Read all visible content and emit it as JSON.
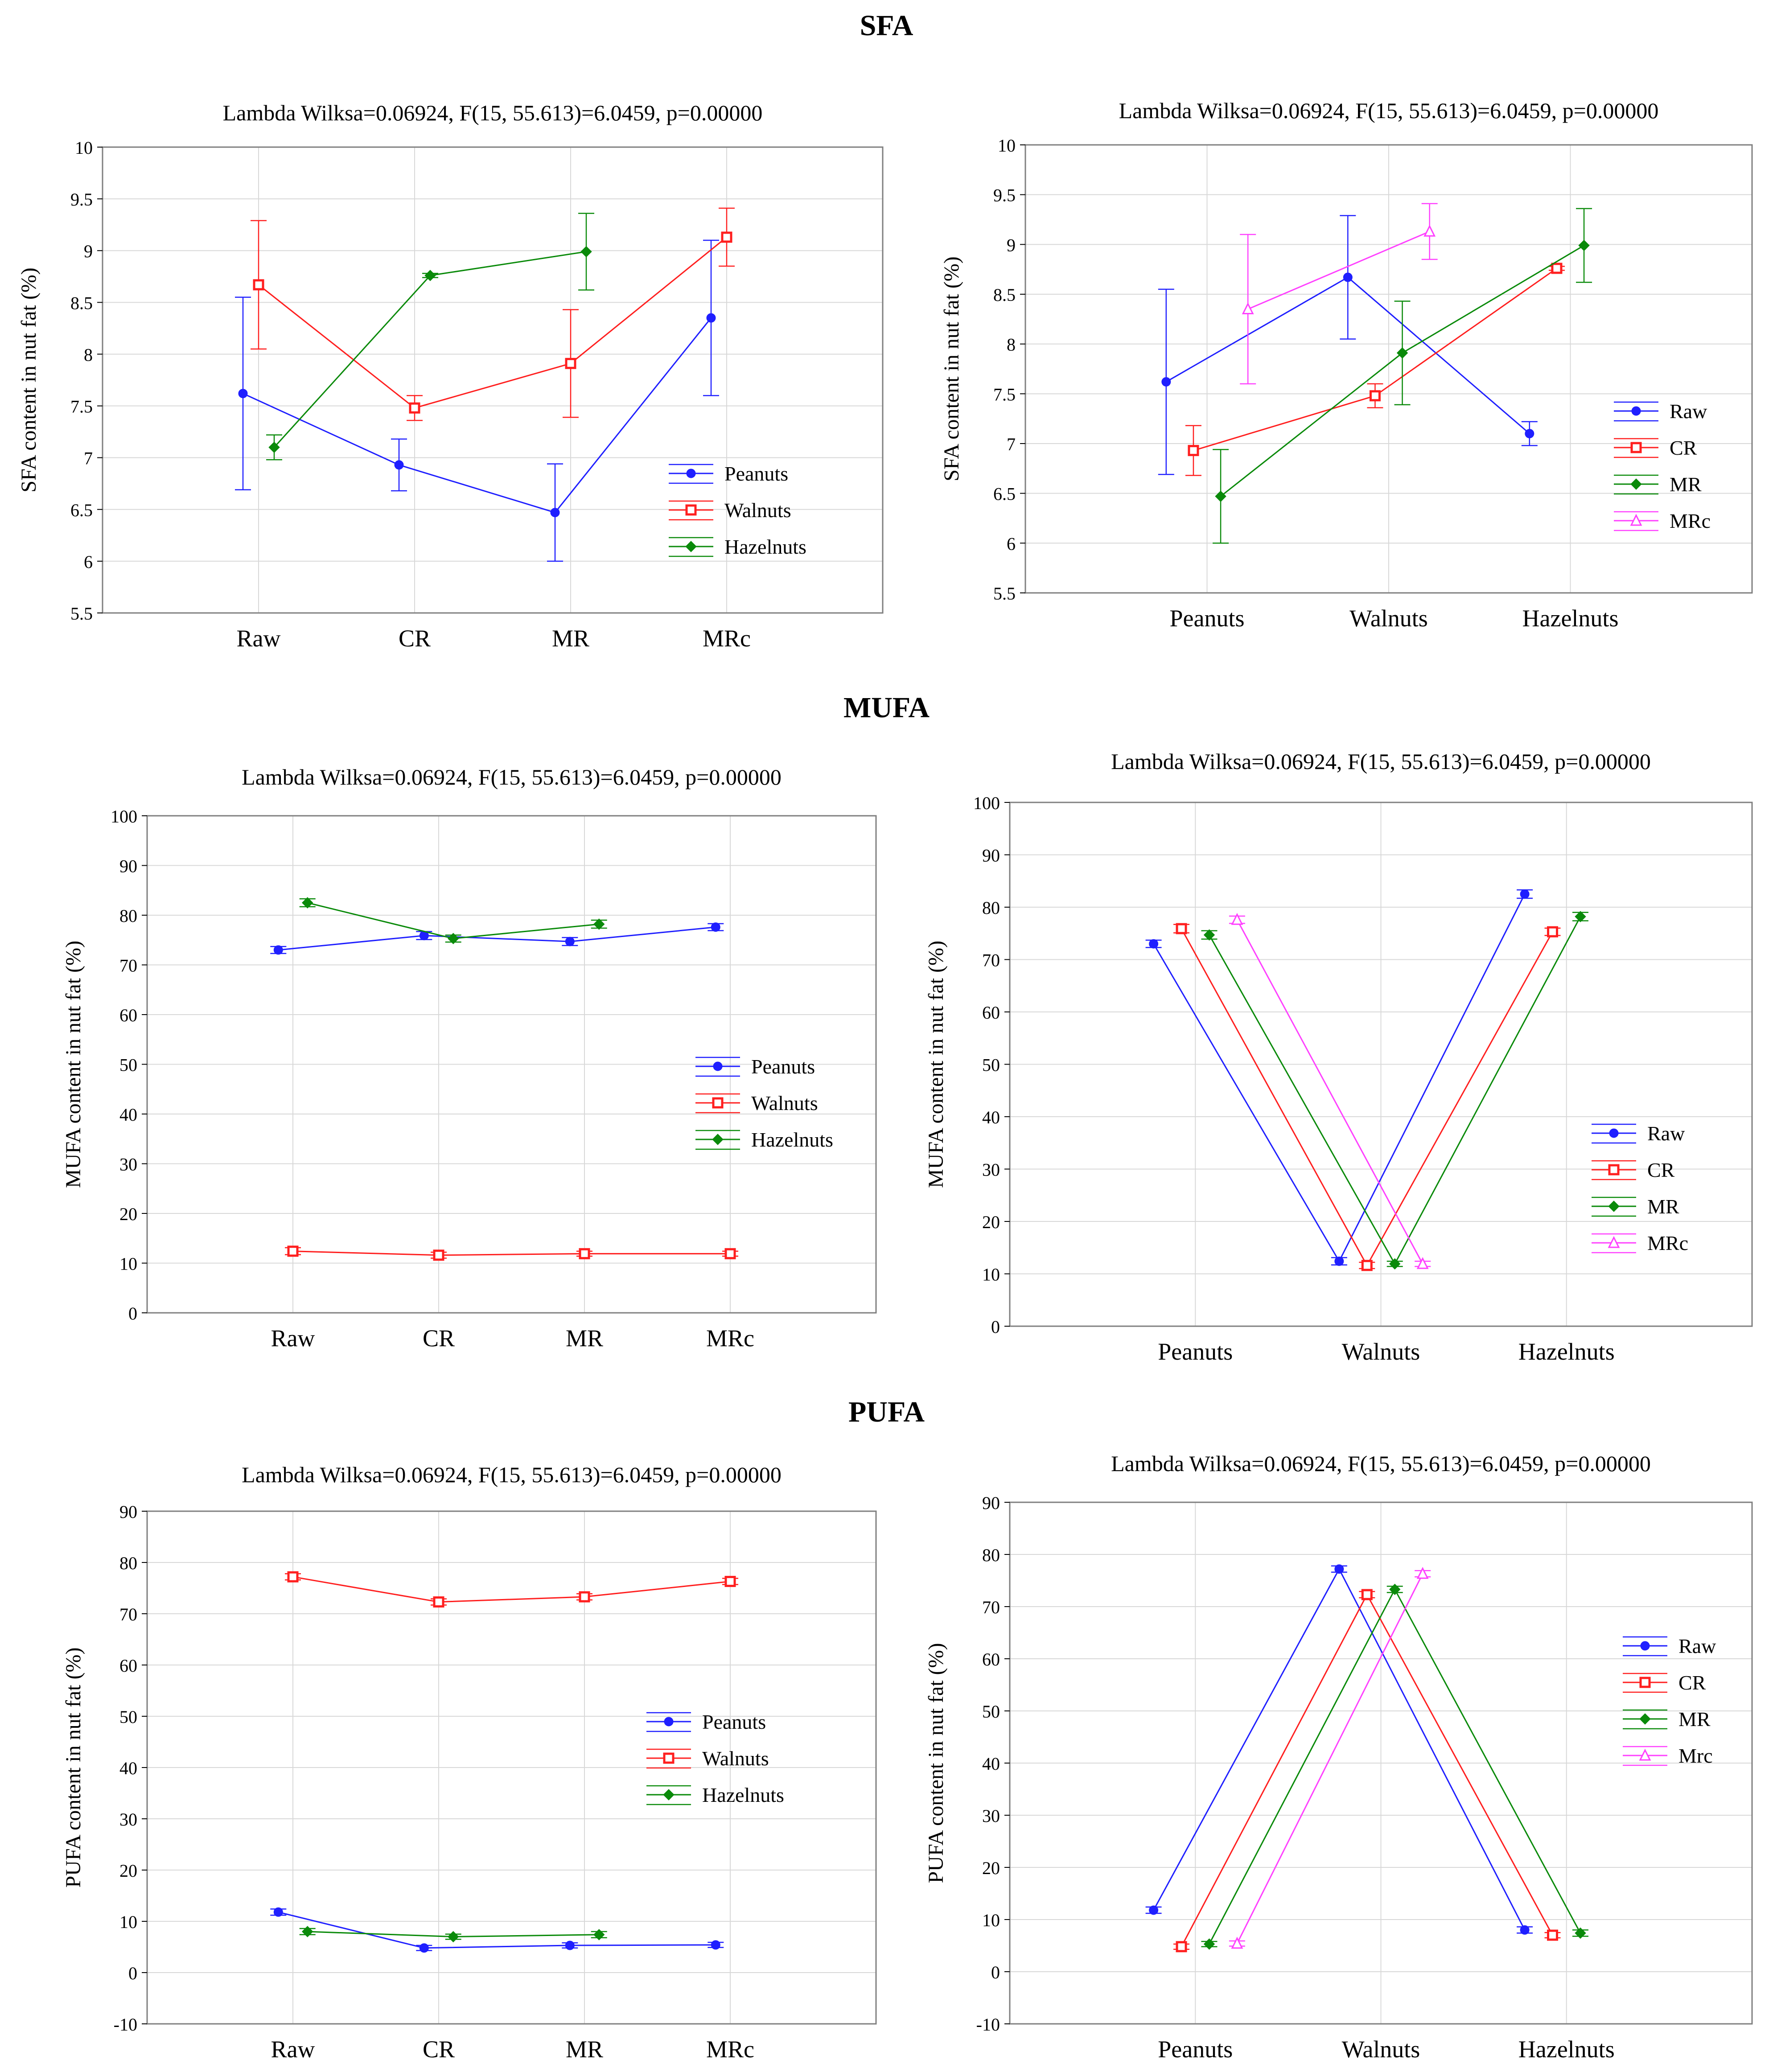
{
  "sections": {
    "sfa": "SFA",
    "mufa": "MUFA",
    "pufa": "PUFA"
  },
  "colors": {
    "blue": "#1f1fff",
    "red": "#ff1f1f",
    "green": "#0a8a0a",
    "magenta": "#ff40ff",
    "grid": "#d8d8d8",
    "frame": "#7f7f7f"
  },
  "chart_data": [
    {
      "id": "sfa-left",
      "type": "line",
      "title": "Lambda Wilksa=0.06924, F(15, 55.613)=6.0459, p=0.00000",
      "ylabel": "SFA content in nut fat (%)",
      "xlabel": "",
      "categories": [
        "Raw",
        "CR",
        "MR",
        "MRc"
      ],
      "ylim": [
        5.5,
        10.0
      ],
      "yticks": [
        5.5,
        6.0,
        6.5,
        7.0,
        7.5,
        8.0,
        8.5,
        9.0,
        9.5,
        10.0
      ],
      "offsets": [
        -0.1,
        0.0,
        0.1
      ],
      "series": [
        {
          "name": "Peanuts",
          "color": "blue",
          "marker": "circle",
          "values": [
            7.62,
            6.93,
            6.47,
            8.35
          ],
          "errors": [
            0.93,
            0.25,
            0.47,
            0.75
          ]
        },
        {
          "name": "Walnuts",
          "color": "red",
          "marker": "square",
          "values": [
            8.67,
            7.48,
            7.91,
            9.13
          ],
          "errors": [
            0.62,
            0.12,
            0.52,
            0.28
          ]
        },
        {
          "name": "Hazelnuts",
          "color": "green",
          "marker": "diamond",
          "values": [
            7.1,
            8.76,
            8.99,
            null
          ],
          "errors": [
            0.12,
            0.02,
            0.37,
            null
          ]
        }
      ],
      "legend": "bottom-right"
    },
    {
      "id": "sfa-right",
      "type": "line",
      "title": "Lambda Wilksa=0.06924, F(15, 55.613)=6.0459, p=0.00000",
      "ylabel": "SFA content in nut fat (%)",
      "xlabel": "",
      "categories": [
        "Peanuts",
        "Walnuts",
        "Hazelnuts"
      ],
      "ylim": [
        5.5,
        10.0
      ],
      "yticks": [
        5.5,
        6.0,
        6.5,
        7.0,
        7.5,
        8.0,
        8.5,
        9.0,
        9.5,
        10.0
      ],
      "offsets": [
        -0.225,
        -0.075,
        0.075,
        0.225
      ],
      "series": [
        {
          "name": "Raw",
          "color": "blue",
          "marker": "circle",
          "values": [
            7.62,
            8.67,
            7.1
          ],
          "errors": [
            0.93,
            0.62,
            0.12
          ]
        },
        {
          "name": "CR",
          "color": "red",
          "marker": "square",
          "values": [
            6.93,
            7.48,
            8.76
          ],
          "errors": [
            0.25,
            0.12,
            0.02
          ]
        },
        {
          "name": "MR",
          "color": "green",
          "marker": "diamond",
          "values": [
            6.47,
            7.91,
            8.99
          ],
          "errors": [
            0.47,
            0.52,
            0.37
          ]
        },
        {
          "name": "MRc",
          "color": "magenta",
          "marker": "triangle",
          "values": [
            8.35,
            9.13,
            null
          ],
          "errors": [
            0.75,
            0.28,
            null
          ]
        }
      ],
      "legend": "bottom-right"
    },
    {
      "id": "mufa-left",
      "type": "line",
      "title": "Lambda Wilksa=0.06924, F(15, 55.613)=6.0459, p=0.00000",
      "ylabel": "MUFA content in nut fat (%)",
      "xlabel": "",
      "categories": [
        "Raw",
        "CR",
        "MR",
        "MRc"
      ],
      "ylim": [
        0,
        100
      ],
      "yticks": [
        0,
        10,
        20,
        30,
        40,
        50,
        60,
        70,
        80,
        90,
        100
      ],
      "offsets": [
        -0.1,
        0.0,
        0.1
      ],
      "series": [
        {
          "name": "Peanuts",
          "color": "blue",
          "marker": "circle",
          "values": [
            73.0,
            75.9,
            74.7,
            77.6
          ],
          "errors": [
            0.7,
            0.8,
            0.8,
            0.7
          ]
        },
        {
          "name": "Walnuts",
          "color": "red",
          "marker": "square",
          "values": [
            12.4,
            11.6,
            11.9,
            11.9
          ],
          "errors": [
            0.7,
            0.6,
            0.5,
            0.5
          ]
        },
        {
          "name": "Hazelnuts",
          "color": "green",
          "marker": "diamond",
          "values": [
            82.5,
            75.3,
            78.2,
            null
          ],
          "errors": [
            0.8,
            0.7,
            0.8,
            null
          ]
        }
      ],
      "legend": "center-right"
    },
    {
      "id": "mufa-right",
      "type": "line",
      "title": "Lambda Wilksa=0.06924, F(15, 55.613)=6.0459, p=0.00000",
      "ylabel": "MUFA content in nut fat (%)",
      "xlabel": "",
      "categories": [
        "Peanuts",
        "Walnuts",
        "Hazelnuts"
      ],
      "ylim": [
        0,
        100
      ],
      "yticks": [
        0,
        10,
        20,
        30,
        40,
        50,
        60,
        70,
        80,
        90,
        100
      ],
      "offsets": [
        -0.225,
        -0.075,
        0.075,
        0.225
      ],
      "series": [
        {
          "name": "Raw",
          "color": "blue",
          "marker": "circle",
          "values": [
            73.0,
            12.4,
            82.5
          ],
          "errors": [
            0.7,
            0.7,
            0.8
          ]
        },
        {
          "name": "CR",
          "color": "red",
          "marker": "square",
          "values": [
            75.9,
            11.6,
            75.3
          ],
          "errors": [
            0.8,
            0.6,
            0.7
          ]
        },
        {
          "name": "MR",
          "color": "green",
          "marker": "diamond",
          "values": [
            74.7,
            11.9,
            78.2
          ],
          "errors": [
            0.8,
            0.5,
            0.8
          ]
        },
        {
          "name": "MRc",
          "color": "magenta",
          "marker": "triangle",
          "values": [
            77.6,
            11.9,
            null
          ],
          "errors": [
            0.7,
            0.5,
            null
          ]
        }
      ],
      "legend": "bottom-right"
    },
    {
      "id": "pufa-left",
      "type": "line",
      "title": "Lambda Wilksa=0.06924, F(15, 55.613)=6.0459, p=0.00000",
      "ylabel": "PUFA content in nut fat (%)",
      "xlabel": "",
      "categories": [
        "Raw",
        "CR",
        "MR",
        "MRc"
      ],
      "ylim": [
        -10,
        90
      ],
      "yticks": [
        -10,
        0,
        10,
        20,
        30,
        40,
        50,
        60,
        70,
        80,
        90
      ],
      "offsets": [
        -0.1,
        0.0,
        0.1
      ],
      "series": [
        {
          "name": "Peanuts",
          "color": "blue",
          "marker": "circle",
          "values": [
            11.8,
            4.8,
            5.3,
            5.4
          ],
          "errors": [
            0.6,
            0.5,
            0.5,
            0.5
          ]
        },
        {
          "name": "Walnuts",
          "color": "red",
          "marker": "square",
          "values": [
            77.2,
            72.3,
            73.3,
            76.3
          ],
          "errors": [
            0.6,
            0.6,
            0.6,
            0.6
          ]
        },
        {
          "name": "Hazelnuts",
          "color": "green",
          "marker": "diamond",
          "values": [
            8.0,
            7.0,
            7.4,
            null
          ],
          "errors": [
            0.6,
            0.5,
            0.6,
            null
          ]
        }
      ],
      "legend": "center-right"
    },
    {
      "id": "pufa-right",
      "type": "line",
      "title": "Lambda Wilksa=0.06924, F(15, 55.613)=6.0459, p=0.00000",
      "ylabel": "PUFA content in nut fat (%)",
      "xlabel": "",
      "categories": [
        "Peanuts",
        "Walnuts",
        "Hazelnuts"
      ],
      "ylim": [
        -10,
        90
      ],
      "yticks": [
        -10,
        0,
        10,
        20,
        30,
        40,
        50,
        60,
        70,
        80,
        90
      ],
      "offsets": [
        -0.225,
        -0.075,
        0.075,
        0.225
      ],
      "series": [
        {
          "name": "Raw",
          "color": "blue",
          "marker": "circle",
          "values": [
            11.8,
            77.2,
            8.0
          ],
          "errors": [
            0.6,
            0.6,
            0.6
          ]
        },
        {
          "name": "CR",
          "color": "red",
          "marker": "square",
          "values": [
            4.8,
            72.3,
            7.0
          ],
          "errors": [
            0.5,
            0.6,
            0.5
          ]
        },
        {
          "name": "MR",
          "color": "green",
          "marker": "diamond",
          "values": [
            5.3,
            73.3,
            7.4
          ],
          "errors": [
            0.5,
            0.6,
            0.6
          ]
        },
        {
          "name": "Mrc",
          "color": "magenta",
          "marker": "triangle",
          "values": [
            5.4,
            76.3,
            null
          ],
          "errors": [
            0.5,
            0.6,
            null
          ]
        }
      ],
      "legend": "top-right"
    }
  ]
}
